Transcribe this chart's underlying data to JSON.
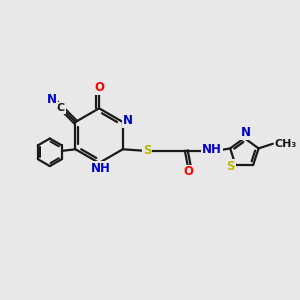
{
  "bg_color": "#e8e8e8",
  "bond_color": "#1a1a1a",
  "bond_width": 1.6,
  "atom_colors": {
    "N": "#0000cc",
    "O": "#ff0000",
    "S": "#bbbb00",
    "C": "#1a1a1a"
  },
  "font_size": 8.5,
  "fig_size": [
    3.0,
    3.0
  ],
  "dpi": 100,
  "xlim": [
    0,
    10
  ],
  "ylim": [
    0,
    10
  ]
}
